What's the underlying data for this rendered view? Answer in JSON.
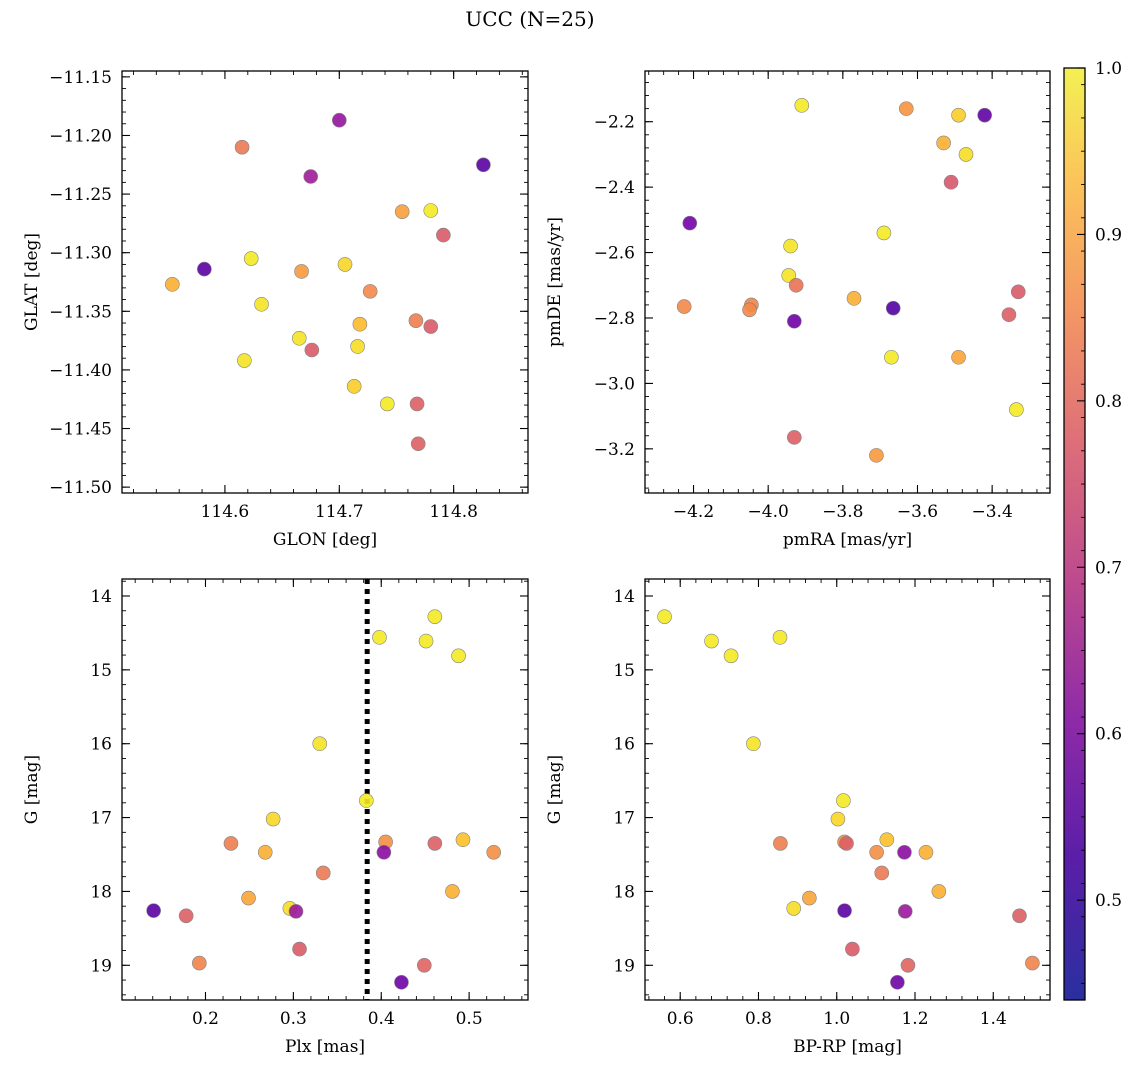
{
  "chart_data": {
    "title": "UCC (N=25)",
    "type": "scatter",
    "colorbar": {
      "vmin": 0.44,
      "vmax": 1.0,
      "ticks": [
        0.5,
        0.6,
        0.7,
        0.8,
        0.9,
        1.0
      ],
      "tick_labels": [
        "0.5",
        "0.6",
        "0.7",
        "0.8",
        "0.9",
        "1.0"
      ],
      "colormap": "plasma"
    },
    "panels": [
      {
        "id": "glon-glat",
        "xlabel": "GLON [deg]",
        "ylabel": "GLAT [deg]",
        "xlim": [
          114.51,
          114.865
        ],
        "ylim": [
          -11.505,
          -11.145
        ],
        "xticks": [
          114.6,
          114.7,
          114.8
        ],
        "xtick_labels": [
          "114.6",
          "114.7",
          "114.8"
        ],
        "yticks": [
          -11.15,
          -11.2,
          -11.25,
          -11.3,
          -11.35,
          -11.4,
          -11.45,
          -11.5
        ],
        "ytick_labels": [
          "−11.15",
          "−11.20",
          "−11.25",
          "−11.30",
          "−11.35",
          "−11.40",
          "−11.45",
          "−11.50"
        ],
        "points": [
          {
            "x": 114.7,
            "y": -11.187,
            "c": 0.57
          },
          {
            "x": 114.615,
            "y": -11.21,
            "c": 0.79
          },
          {
            "x": 114.826,
            "y": -11.225,
            "c": 0.47
          },
          {
            "x": 114.675,
            "y": -11.235,
            "c": 0.59
          },
          {
            "x": 114.755,
            "y": -11.265,
            "c": 0.86
          },
          {
            "x": 114.78,
            "y": -11.264,
            "c": 0.98
          },
          {
            "x": 114.791,
            "y": -11.285,
            "c": 0.73
          },
          {
            "x": 114.623,
            "y": -11.305,
            "c": 0.98
          },
          {
            "x": 114.705,
            "y": -11.31,
            "c": 0.95
          },
          {
            "x": 114.582,
            "y": -11.314,
            "c": 0.47
          },
          {
            "x": 114.667,
            "y": -11.316,
            "c": 0.85
          },
          {
            "x": 114.554,
            "y": -11.327,
            "c": 0.89
          },
          {
            "x": 114.727,
            "y": -11.333,
            "c": 0.82
          },
          {
            "x": 114.632,
            "y": -11.344,
            "c": 0.97
          },
          {
            "x": 114.718,
            "y": -11.361,
            "c": 0.91
          },
          {
            "x": 114.767,
            "y": -11.358,
            "c": 0.8
          },
          {
            "x": 114.78,
            "y": -11.363,
            "c": 0.73
          },
          {
            "x": 114.665,
            "y": -11.373,
            "c": 0.97
          },
          {
            "x": 114.676,
            "y": -11.383,
            "c": 0.73
          },
          {
            "x": 114.716,
            "y": -11.38,
            "c": 0.96
          },
          {
            "x": 114.617,
            "y": -11.392,
            "c": 0.97
          },
          {
            "x": 114.713,
            "y": -11.414,
            "c": 0.94
          },
          {
            "x": 114.742,
            "y": -11.429,
            "c": 0.98
          },
          {
            "x": 114.768,
            "y": -11.429,
            "c": 0.74
          },
          {
            "x": 114.769,
            "y": -11.463,
            "c": 0.74
          }
        ]
      },
      {
        "id": "pmra-pmde",
        "xlabel": "pmRA [mas/yr]",
        "ylabel": "pmDE [mas/yr]",
        "xlim": [
          -4.33,
          -3.245
        ],
        "ylim": [
          -3.335,
          -2.045
        ],
        "xticks": [
          -4.2,
          -4.0,
          -3.8,
          -3.6,
          -3.4
        ],
        "xtick_labels": [
          "−4.2",
          "−4.0",
          "−3.8",
          "−3.6",
          "−3.4"
        ],
        "yticks": [
          -2.2,
          -2.4,
          -2.6,
          -2.8,
          -3.0,
          -3.2
        ],
        "ytick_labels": [
          "−2.2",
          "−2.4",
          "−2.6",
          "−2.8",
          "−3.0",
          "−3.2"
        ],
        "points": [
          {
            "x": -3.91,
            "y": -2.15,
            "c": 0.98
          },
          {
            "x": -3.63,
            "y": -2.16,
            "c": 0.84
          },
          {
            "x": -3.49,
            "y": -2.18,
            "c": 0.94
          },
          {
            "x": -3.42,
            "y": -2.18,
            "c": 0.48
          },
          {
            "x": -3.53,
            "y": -2.265,
            "c": 0.89
          },
          {
            "x": -3.47,
            "y": -2.3,
            "c": 0.96
          },
          {
            "x": -3.51,
            "y": -2.385,
            "c": 0.72
          },
          {
            "x": -4.21,
            "y": -2.51,
            "c": 0.51
          },
          {
            "x": -3.69,
            "y": -2.54,
            "c": 0.98
          },
          {
            "x": -3.94,
            "y": -2.58,
            "c": 0.97
          },
          {
            "x": -3.945,
            "y": -2.67,
            "c": 0.97
          },
          {
            "x": -3.925,
            "y": -2.7,
            "c": 0.78
          },
          {
            "x": -3.33,
            "y": -2.72,
            "c": 0.73
          },
          {
            "x": -3.77,
            "y": -2.74,
            "c": 0.89
          },
          {
            "x": -4.225,
            "y": -2.765,
            "c": 0.82
          },
          {
            "x": -4.045,
            "y": -2.76,
            "c": 0.81
          },
          {
            "x": -4.05,
            "y": -2.775,
            "c": 0.82
          },
          {
            "x": -3.665,
            "y": -2.77,
            "c": 0.46
          },
          {
            "x": -3.355,
            "y": -2.79,
            "c": 0.74
          },
          {
            "x": -3.93,
            "y": -2.81,
            "c": 0.5
          },
          {
            "x": -3.67,
            "y": -2.92,
            "c": 0.98
          },
          {
            "x": -3.49,
            "y": -2.92,
            "c": 0.87
          },
          {
            "x": -3.335,
            "y": -3.08,
            "c": 0.98
          },
          {
            "x": -3.93,
            "y": -3.165,
            "c": 0.74
          },
          {
            "x": -3.71,
            "y": -3.22,
            "c": 0.85
          }
        ]
      },
      {
        "id": "plx-g",
        "xlabel": "Plx [mas]",
        "ylabel": "G [mag]",
        "xlim": [
          0.105,
          0.567
        ],
        "ylim": [
          19.47,
          13.77
        ],
        "xticks": [
          0.2,
          0.3,
          0.4,
          0.5
        ],
        "xtick_labels": [
          "0.2",
          "0.3",
          "0.4",
          "0.5"
        ],
        "yticks": [
          14,
          15,
          16,
          17,
          18,
          19
        ],
        "ytick_labels": [
          "14",
          "15",
          "16",
          "17",
          "18",
          "19"
        ],
        "vline": 0.384,
        "points": [
          {
            "x": 0.461,
            "y": 14.28,
            "c": 0.98
          },
          {
            "x": 0.398,
            "y": 14.56,
            "c": 0.98
          },
          {
            "x": 0.451,
            "y": 14.61,
            "c": 0.98
          },
          {
            "x": 0.488,
            "y": 14.81,
            "c": 0.98
          },
          {
            "x": 0.33,
            "y": 16.0,
            "c": 0.97
          },
          {
            "x": 0.383,
            "y": 16.77,
            "c": 0.98
          },
          {
            "x": 0.277,
            "y": 17.02,
            "c": 0.95
          },
          {
            "x": 0.229,
            "y": 17.35,
            "c": 0.8
          },
          {
            "x": 0.405,
            "y": 17.33,
            "c": 0.83
          },
          {
            "x": 0.461,
            "y": 17.35,
            "c": 0.74
          },
          {
            "x": 0.493,
            "y": 17.3,
            "c": 0.92
          },
          {
            "x": 0.268,
            "y": 17.47,
            "c": 0.89
          },
          {
            "x": 0.403,
            "y": 17.47,
            "c": 0.55
          },
          {
            "x": 0.528,
            "y": 17.47,
            "c": 0.83
          },
          {
            "x": 0.334,
            "y": 17.75,
            "c": 0.79
          },
          {
            "x": 0.481,
            "y": 18.0,
            "c": 0.89
          },
          {
            "x": 0.249,
            "y": 18.09,
            "c": 0.87
          },
          {
            "x": 0.141,
            "y": 18.26,
            "c": 0.47
          },
          {
            "x": 0.178,
            "y": 18.33,
            "c": 0.74
          },
          {
            "x": 0.296,
            "y": 18.23,
            "c": 0.96
          },
          {
            "x": 0.303,
            "y": 18.27,
            "c": 0.58
          },
          {
            "x": 0.307,
            "y": 18.78,
            "c": 0.73
          },
          {
            "x": 0.193,
            "y": 18.97,
            "c": 0.81
          },
          {
            "x": 0.449,
            "y": 19.0,
            "c": 0.75
          },
          {
            "x": 0.423,
            "y": 19.23,
            "c": 0.5
          }
        ]
      },
      {
        "id": "bprp-g",
        "xlabel": "BP-RP [mag]",
        "ylabel": "G [mag]",
        "xlim": [
          0.51,
          1.545
        ],
        "ylim": [
          19.47,
          13.77
        ],
        "xticks": [
          0.6,
          0.8,
          1.0,
          1.2,
          1.4
        ],
        "xtick_labels": [
          "0.6",
          "0.8",
          "1.0",
          "1.2",
          "1.4"
        ],
        "yticks": [
          14,
          15,
          16,
          17,
          18,
          19
        ],
        "ytick_labels": [
          "14",
          "15",
          "16",
          "17",
          "18",
          "19"
        ],
        "points": [
          {
            "x": 0.56,
            "y": 14.28,
            "c": 0.98
          },
          {
            "x": 0.855,
            "y": 14.56,
            "c": 0.98
          },
          {
            "x": 0.68,
            "y": 14.61,
            "c": 0.98
          },
          {
            "x": 0.73,
            "y": 14.81,
            "c": 0.98
          },
          {
            "x": 0.787,
            "y": 16.0,
            "c": 0.97
          },
          {
            "x": 1.017,
            "y": 16.77,
            "c": 0.98
          },
          {
            "x": 1.003,
            "y": 17.02,
            "c": 0.95
          },
          {
            "x": 0.856,
            "y": 17.35,
            "c": 0.8
          },
          {
            "x": 1.02,
            "y": 17.33,
            "c": 0.83
          },
          {
            "x": 1.025,
            "y": 17.35,
            "c": 0.74
          },
          {
            "x": 1.128,
            "y": 17.3,
            "c": 0.92
          },
          {
            "x": 1.228,
            "y": 17.47,
            "c": 0.89
          },
          {
            "x": 1.173,
            "y": 17.47,
            "c": 0.55
          },
          {
            "x": 1.102,
            "y": 17.47,
            "c": 0.83
          },
          {
            "x": 1.115,
            "y": 17.75,
            "c": 0.79
          },
          {
            "x": 1.261,
            "y": 18.0,
            "c": 0.89
          },
          {
            "x": 0.93,
            "y": 18.09,
            "c": 0.87
          },
          {
            "x": 1.02,
            "y": 18.26,
            "c": 0.47
          },
          {
            "x": 1.467,
            "y": 18.33,
            "c": 0.74
          },
          {
            "x": 0.89,
            "y": 18.23,
            "c": 0.96
          },
          {
            "x": 1.175,
            "y": 18.27,
            "c": 0.58
          },
          {
            "x": 1.04,
            "y": 18.78,
            "c": 0.73
          },
          {
            "x": 1.5,
            "y": 18.97,
            "c": 0.81
          },
          {
            "x": 1.182,
            "y": 19.0,
            "c": 0.75
          },
          {
            "x": 1.155,
            "y": 19.23,
            "c": 0.5
          }
        ]
      }
    ]
  }
}
